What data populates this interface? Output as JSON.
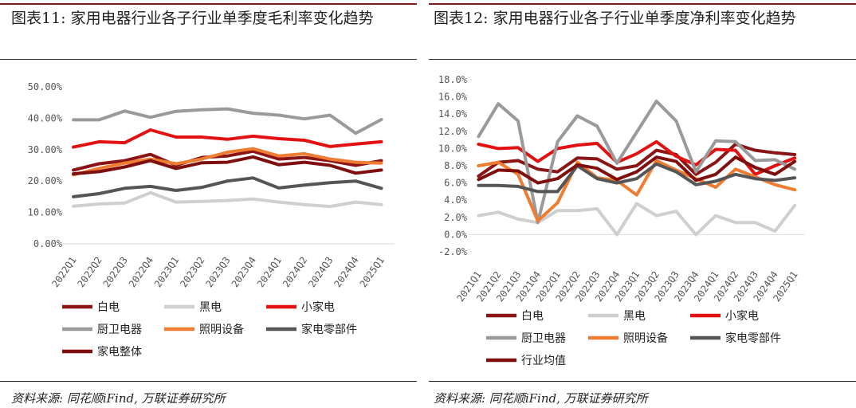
{
  "left": {
    "title": "图表11:  家用电器行业各子行业单季度毛利率变化趋势",
    "source": "资料来源:  同花顺iFind,  万联证券研究所",
    "chart_data": {
      "type": "line",
      "categories": [
        "2022Q1",
        "2022Q2",
        "2022Q3",
        "2022Q4",
        "2023Q1",
        "2023Q2",
        "2023Q3",
        "2023Q4",
        "2024Q1",
        "2024Q2",
        "2024Q3",
        "2024Q4",
        "2025Q1"
      ],
      "y_ticks": [
        "50.00%",
        "40.00%",
        "30.00%",
        "20.00%",
        "10.00%",
        "0.00%"
      ],
      "ylim": [
        0,
        50
      ],
      "series": [
        {
          "name": "白电",
          "color": "#8b1414",
          "values": [
            23.5,
            25.5,
            26.5,
            28.5,
            25.0,
            27.5,
            28.0,
            29.5,
            27.0,
            27.5,
            26.5,
            25.0,
            26.5
          ]
        },
        {
          "name": "黑电",
          "color": "#cfcfcf",
          "values": [
            12.0,
            12.7,
            13.0,
            16.3,
            13.3,
            13.5,
            13.8,
            14.3,
            13.3,
            12.5,
            11.9,
            13.3,
            12.5
          ]
        },
        {
          "name": "小家电",
          "color": "#e31212",
          "values": [
            30.8,
            32.5,
            32.2,
            36.3,
            34.0,
            34.0,
            33.3,
            34.3,
            33.5,
            33.0,
            31.0,
            31.8,
            32.5
          ]
        },
        {
          "name": "厨卫电器",
          "color": "#9a9a9a",
          "values": [
            39.5,
            39.5,
            42.3,
            40.3,
            42.2,
            42.7,
            43.0,
            41.6,
            41.0,
            39.8,
            41.0,
            35.2,
            39.6
          ]
        },
        {
          "name": "照明设备",
          "color": "#ef7d31",
          "values": [
            22.0,
            24.0,
            25.7,
            27.0,
            25.5,
            27.0,
            29.2,
            30.3,
            28.0,
            28.7,
            27.0,
            26.0,
            25.7
          ]
        },
        {
          "name": "家电零部件",
          "color": "#555555",
          "values": [
            15.0,
            16.0,
            17.7,
            18.3,
            17.0,
            18.0,
            20.0,
            21.0,
            17.8,
            18.7,
            19.5,
            20.0,
            17.7
          ]
        },
        {
          "name": "家电整体",
          "color": "#7f0e0e",
          "values": [
            22.3,
            23.0,
            24.5,
            26.5,
            24.0,
            25.8,
            26.0,
            27.7,
            25.2,
            26.0,
            25.0,
            22.5,
            23.5
          ]
        }
      ]
    }
  },
  "right": {
    "title": "图表12:  家用电器行业各子行业单季度净利率变化趋势",
    "source": "资料来源:  同花顺iFind,  万联证券研究所",
    "chart_data": {
      "type": "line",
      "categories": [
        "2021Q1",
        "2021Q2",
        "2021Q3",
        "2021Q4",
        "2022Q1",
        "2022Q2",
        "2022Q3",
        "2022Q4",
        "2023Q1",
        "2023Q2",
        "2023Q3",
        "2023Q4",
        "2024Q1",
        "2024Q2",
        "2024Q3",
        "2024Q4",
        "2025Q1"
      ],
      "y_ticks": [
        "18.0%",
        "16.0%",
        "14.0%",
        "12.0%",
        "10.0%",
        "8.0%",
        "6.0%",
        "4.0%",
        "2.0%",
        "0.0%",
        "-2.0%"
      ],
      "ylim": [
        -2,
        18
      ],
      "series": [
        {
          "name": "白电",
          "color": "#8b1414",
          "values": [
            6.8,
            8.4,
            8.6,
            7.6,
            7.3,
            8.9,
            8.8,
            7.6,
            8.0,
            9.8,
            9.3,
            7.0,
            8.4,
            10.5,
            9.8,
            9.5,
            9.3
          ]
        },
        {
          "name": "黑电",
          "color": "#cfcfcf",
          "values": [
            2.2,
            2.6,
            1.8,
            1.4,
            2.8,
            2.8,
            3.0,
            0.0,
            3.6,
            2.2,
            2.7,
            0.0,
            2.2,
            1.4,
            1.4,
            0.4,
            3.4
          ]
        },
        {
          "name": "小家电",
          "color": "#e31212",
          "values": [
            10.5,
            10.0,
            10.1,
            8.5,
            10.0,
            10.4,
            10.6,
            8.4,
            9.4,
            10.8,
            9.1,
            8.1,
            9.9,
            9.8,
            7.0,
            8.0,
            8.9
          ]
        },
        {
          "name": "厨卫电器",
          "color": "#9a9a9a",
          "values": [
            11.4,
            15.2,
            13.2,
            1.4,
            10.8,
            13.8,
            12.6,
            8.3,
            11.9,
            15.5,
            13.2,
            7.3,
            10.9,
            10.8,
            8.6,
            8.7,
            7.6
          ]
        },
        {
          "name": "照明设备",
          "color": "#ef7d31",
          "values": [
            8.0,
            8.4,
            7.0,
            1.6,
            3.7,
            8.4,
            6.6,
            6.3,
            4.6,
            8.6,
            7.5,
            6.5,
            5.5,
            7.6,
            6.7,
            5.8,
            5.2
          ]
        },
        {
          "name": "家电零部件",
          "color": "#555555",
          "values": [
            5.7,
            5.7,
            5.6,
            5.0,
            5.0,
            8.0,
            6.5,
            6.0,
            6.5,
            8.2,
            7.3,
            5.8,
            6.2,
            7.0,
            6.5,
            6.3,
            6.6
          ]
        },
        {
          "name": "行业均值",
          "color": "#7f0e0e",
          "values": [
            6.4,
            7.5,
            7.4,
            6.0,
            6.5,
            8.1,
            7.7,
            6.4,
            7.3,
            9.0,
            8.5,
            6.3,
            7.0,
            9.0,
            7.8,
            7.0,
            8.5
          ]
        }
      ]
    }
  }
}
